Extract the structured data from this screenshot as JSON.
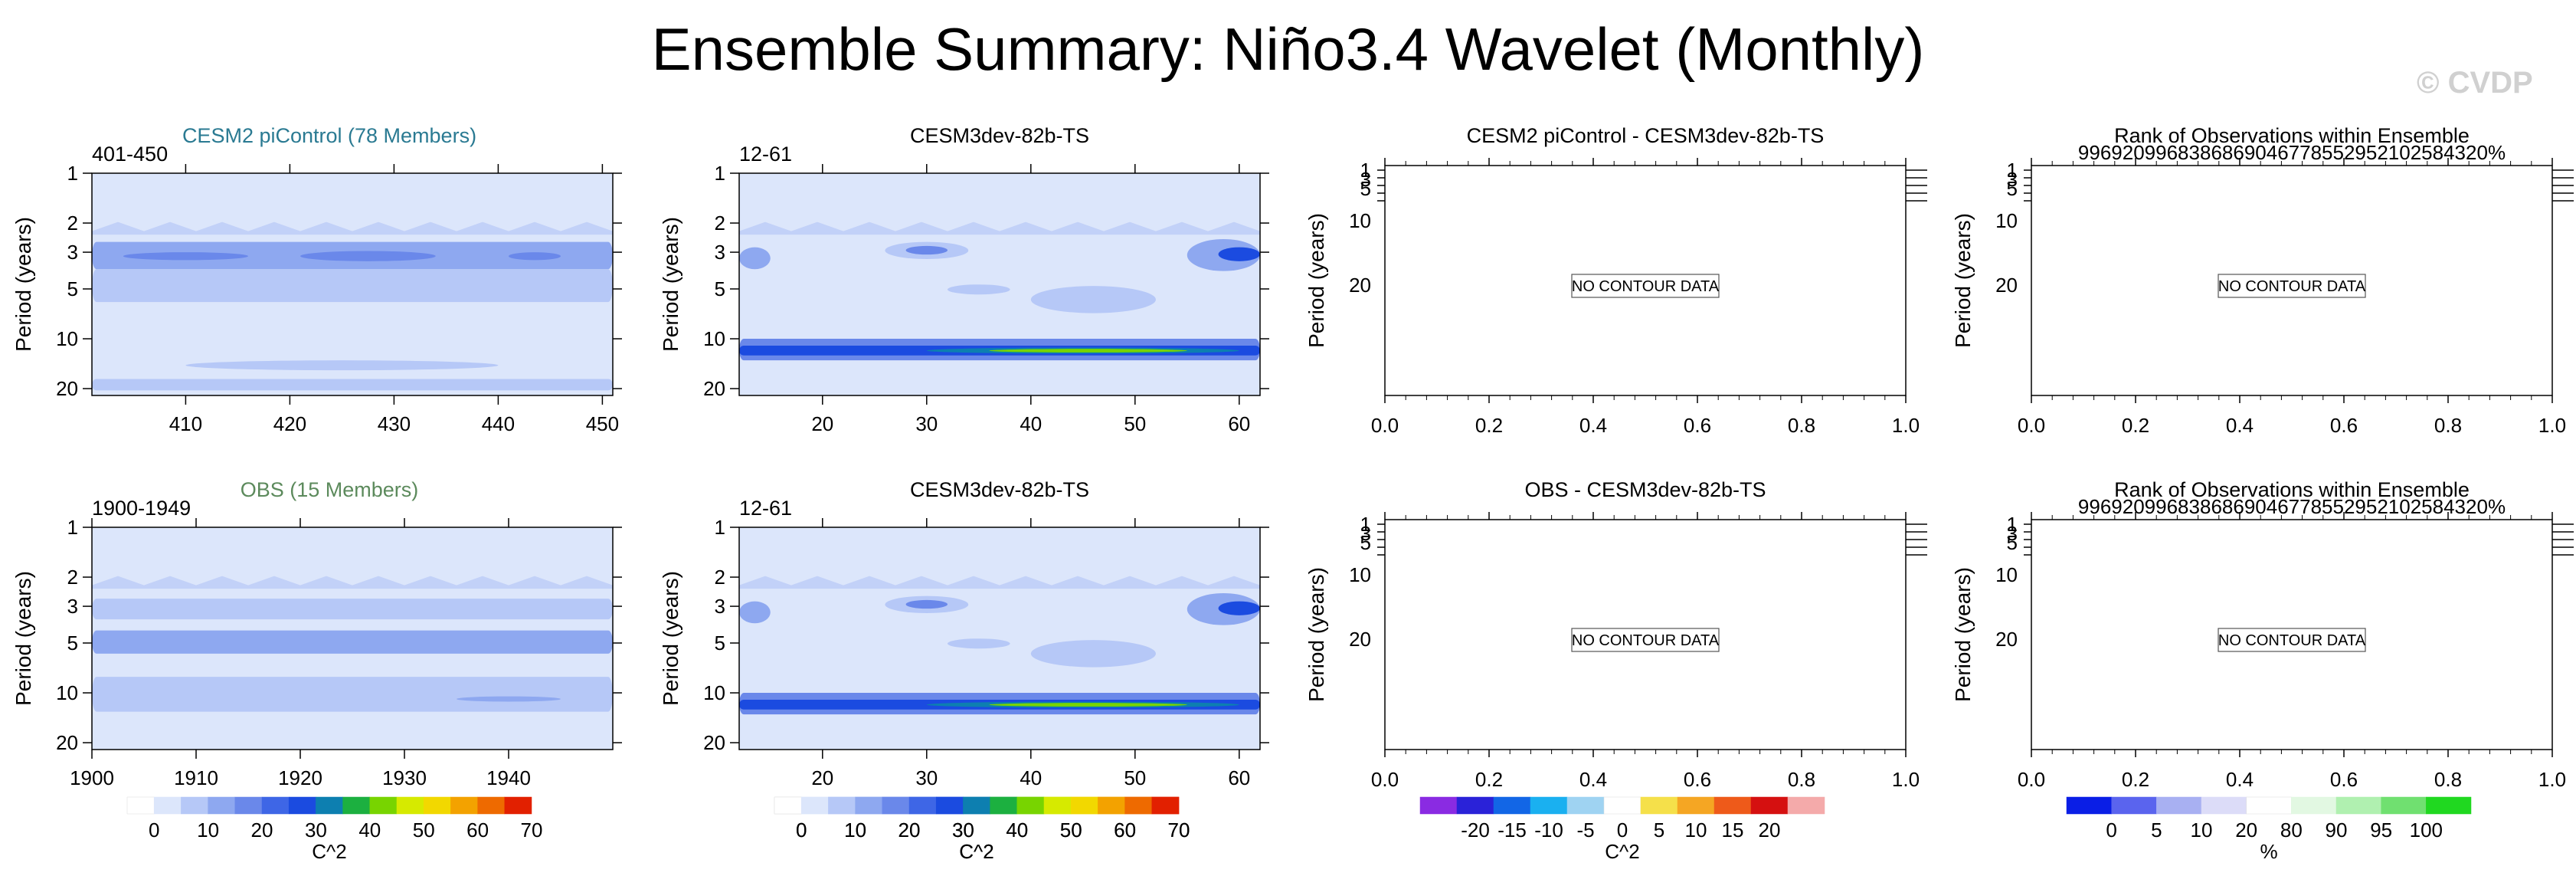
{
  "page_title": "Ensemble Summary: Niño3.4 Wavelet (Monthly)",
  "watermark": "© CVDP",
  "colors": {
    "control_title": "#2a7a92",
    "obs_title": "#5c8a5c",
    "text": "#000000"
  },
  "axis": {
    "ylabel": "Period (years)",
    "period_ticks": [
      1,
      2,
      3,
      5,
      10,
      20
    ],
    "blank_ticks": [
      0.0,
      0.2,
      0.4,
      0.6,
      0.8,
      1.0
    ],
    "blank_tick_labels": [
      "0.0",
      "0.2",
      "0.4",
      "0.6",
      "0.8",
      "1.0"
    ]
  },
  "no_data_text": "NO CONTOUR DATA",
  "colorbars": {
    "power": {
      "labels": [
        "0",
        "10",
        "20",
        "30",
        "40",
        "50",
        "60",
        "70"
      ],
      "title": "C^2",
      "colors": [
        "#ffffff",
        "#dce6fb",
        "#b6c8f7",
        "#8ea8f0",
        "#6a88ea",
        "#3e66e6",
        "#1b4be0",
        "#0d7fb0",
        "#1cb040",
        "#78d400",
        "#d6ea00",
        "#f2d800",
        "#f3a200",
        "#ee6a00",
        "#e22000"
      ]
    },
    "diff": {
      "labels": [
        "-20",
        "-15",
        "-10",
        "-5",
        "0",
        "5",
        "10",
        "15",
        "20"
      ],
      "title": "C^2",
      "colors": [
        "#8a2be2",
        "#2a22d8",
        "#1266e6",
        "#1ab0f0",
        "#9fd3f2",
        "#ffffff",
        "#f5e04a",
        "#f5a623",
        "#ee5a1a",
        "#d51010",
        "#f4aaaa"
      ]
    },
    "rank": {
      "labels": [
        "0",
        "5",
        "10",
        "20",
        "80",
        "90",
        "95",
        "100"
      ],
      "title": "%",
      "colors": [
        "#0a1ee6",
        "#5a64ee",
        "#a8b0f2",
        "#dcdcf8",
        "#ffffff",
        "#e2f8e2",
        "#b0f0b0",
        "#70e070",
        "#20d820"
      ]
    }
  },
  "chart_data": [
    {
      "id": "control",
      "type": "heatmap",
      "title": "CESM2 piControl (78 Members)",
      "left_label": "401-450",
      "xlim": [
        401,
        451
      ],
      "x_ticks": [
        410,
        420,
        430,
        440,
        450
      ],
      "x_tick_labels": [
        "410",
        "420",
        "430",
        "440",
        "450"
      ],
      "ylim": [
        1,
        22
      ],
      "has_contours": true,
      "colorbar": "",
      "features": [
        {
          "x0": 401,
          "x1": 451,
          "p0": 2.6,
          "p1": 3.8,
          "level": 3
        },
        {
          "x0": 404,
          "x1": 416,
          "p0": 3.0,
          "p1": 3.35,
          "level": 4
        },
        {
          "x0": 421,
          "x1": 434,
          "p0": 2.95,
          "p1": 3.4,
          "level": 4
        },
        {
          "x0": 441,
          "x1": 446,
          "p0": 3.0,
          "p1": 3.35,
          "level": 4
        },
        {
          "x0": 401,
          "x1": 451,
          "p0": 3.8,
          "p1": 6.0,
          "level": 2
        },
        {
          "x0": 410,
          "x1": 440,
          "p0": 13.5,
          "p1": 15.5,
          "level": 2
        },
        {
          "x0": 401,
          "x1": 451,
          "p0": 17.5,
          "p1": 20.5,
          "level": 2
        }
      ]
    },
    {
      "id": "model1",
      "type": "heatmap",
      "title": "CESM3dev-82b-TS",
      "left_label": "12-61",
      "xlim": [
        12,
        62
      ],
      "x_ticks": [
        20,
        30,
        40,
        50,
        60
      ],
      "x_tick_labels": [
        "20",
        "30",
        "40",
        "50",
        "60"
      ],
      "ylim": [
        1,
        22
      ],
      "has_contours": true,
      "colorbar": "power",
      "features": [
        {
          "x0": 12,
          "x1": 15,
          "p0": 2.8,
          "p1": 3.8,
          "level": 3
        },
        {
          "x0": 26,
          "x1": 34,
          "p0": 2.6,
          "p1": 3.3,
          "level": 2
        },
        {
          "x0": 28,
          "x1": 32,
          "p0": 2.75,
          "p1": 3.1,
          "level": 4
        },
        {
          "x0": 32,
          "x1": 38,
          "p0": 4.7,
          "p1": 5.4,
          "level": 2
        },
        {
          "x0": 40,
          "x1": 52,
          "p0": 4.8,
          "p1": 7.0,
          "level": 2
        },
        {
          "x0": 55,
          "x1": 62,
          "p0": 2.5,
          "p1": 3.9,
          "level": 3
        },
        {
          "x0": 58,
          "x1": 62,
          "p0": 2.8,
          "p1": 3.4,
          "level": 6
        },
        {
          "x0": 12,
          "x1": 62,
          "p0": 10.0,
          "p1": 13.5,
          "level": 4
        },
        {
          "x0": 12,
          "x1": 62,
          "p0": 11.0,
          "p1": 12.6,
          "level": 6
        },
        {
          "x0": 30,
          "x1": 60,
          "p0": 11.3,
          "p1": 12.3,
          "level": 7
        },
        {
          "x0": 36,
          "x1": 55,
          "p0": 11.5,
          "p1": 12.1,
          "level": 9
        }
      ]
    },
    {
      "id": "diff1",
      "type": "heatmap",
      "title": "CESM2 piControl - CESM3dev-82b-TS",
      "xlim": [
        0.0,
        1.0
      ],
      "has_contours": false,
      "colorbar": ""
    },
    {
      "id": "rank1",
      "type": "heatmap",
      "title": "Rank of Observations within Ensemble",
      "subtitle": "996920996838686904677855295210258432​0%",
      "xlim": [
        0.0,
        1.0
      ],
      "has_contours": false,
      "colorbar": ""
    },
    {
      "id": "obs",
      "type": "heatmap",
      "title": "OBS (15 Members)",
      "left_label": "1900-1949",
      "xlim": [
        1900,
        1950
      ],
      "x_ticks": [
        1900,
        1910,
        1920,
        1930,
        1940
      ],
      "x_tick_labels": [
        "1900",
        "1910",
        "1920",
        "1930",
        "1940"
      ],
      "ylim": [
        1,
        22
      ],
      "has_contours": true,
      "colorbar": "power",
      "features": [
        {
          "x0": 1900,
          "x1": 1950,
          "p0": 2.7,
          "p1": 3.6,
          "level": 2
        },
        {
          "x0": 1900,
          "x1": 1950,
          "p0": 4.2,
          "p1": 5.8,
          "level": 3
        },
        {
          "x0": 1900,
          "x1": 1950,
          "p0": 8.0,
          "p1": 13.0,
          "level": 2
        },
        {
          "x0": 1935,
          "x1": 1945,
          "p0": 10.5,
          "p1": 11.3,
          "level": 3
        }
      ]
    },
    {
      "id": "model2",
      "type": "heatmap",
      "title": "CESM3dev-82b-TS",
      "left_label": "12-61",
      "xlim": [
        12,
        62
      ],
      "x_ticks": [
        20,
        30,
        40,
        50,
        60
      ],
      "x_tick_labels": [
        "20",
        "30",
        "40",
        "50",
        "60"
      ],
      "ylim": [
        1,
        22
      ],
      "has_contours": true,
      "colorbar": "power",
      "features": [
        {
          "x0": 12,
          "x1": 15,
          "p0": 2.8,
          "p1": 3.8,
          "level": 3
        },
        {
          "x0": 26,
          "x1": 34,
          "p0": 2.6,
          "p1": 3.3,
          "level": 2
        },
        {
          "x0": 28,
          "x1": 32,
          "p0": 2.75,
          "p1": 3.1,
          "level": 4
        },
        {
          "x0": 32,
          "x1": 38,
          "p0": 4.7,
          "p1": 5.4,
          "level": 2
        },
        {
          "x0": 40,
          "x1": 52,
          "p0": 4.8,
          "p1": 7.0,
          "level": 2
        },
        {
          "x0": 55,
          "x1": 62,
          "p0": 2.5,
          "p1": 3.9,
          "level": 3
        },
        {
          "x0": 58,
          "x1": 62,
          "p0": 2.8,
          "p1": 3.4,
          "level": 6
        },
        {
          "x0": 12,
          "x1": 62,
          "p0": 10.0,
          "p1": 13.5,
          "level": 4
        },
        {
          "x0": 12,
          "x1": 62,
          "p0": 11.0,
          "p1": 12.6,
          "level": 6
        },
        {
          "x0": 30,
          "x1": 60,
          "p0": 11.3,
          "p1": 12.3,
          "level": 7
        },
        {
          "x0": 36,
          "x1": 55,
          "p0": 11.5,
          "p1": 12.1,
          "level": 9
        }
      ]
    },
    {
      "id": "diff2",
      "type": "heatmap",
      "title": "OBS - CESM3dev-82b-TS",
      "xlim": [
        0.0,
        1.0
      ],
      "has_contours": false,
      "colorbar": "diff"
    },
    {
      "id": "rank2",
      "type": "heatmap",
      "title": "Rank of Observations within Ensemble",
      "subtitle": "996920996838686904677855295210258432​0%",
      "xlim": [
        0.0,
        1.0
      ],
      "has_contours": false,
      "colorbar": "rank"
    }
  ]
}
